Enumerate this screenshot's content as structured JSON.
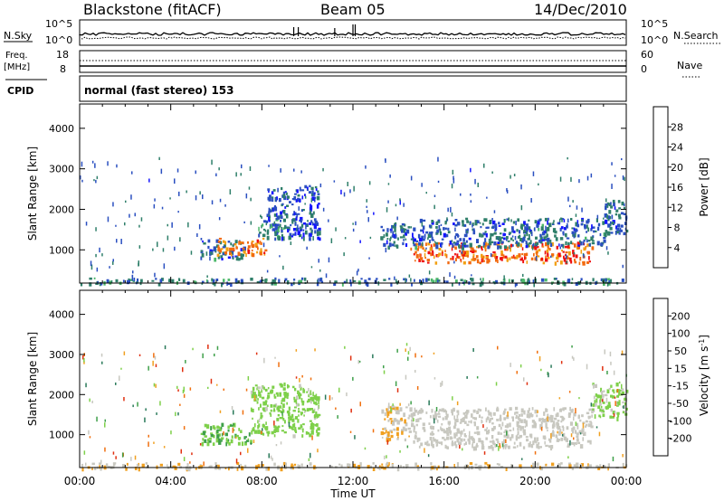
{
  "header": {
    "station": "Blackstone (fitACF)",
    "beam": "Beam 05",
    "date": "14/Dec/2010"
  },
  "noise_panel": {
    "left_label": "N.Sky",
    "left_ticks": [
      "10^5",
      "10^0"
    ],
    "right_ticks": [
      "10^5",
      "10^0"
    ],
    "right_label": "N.Search"
  },
  "freq_panel": {
    "label_line1": "Freq.",
    "label_line2": "[MHz]",
    "left_ticks": [
      "18",
      "8"
    ],
    "right_ticks": [
      "60",
      "0"
    ],
    "right_label": "Nave"
  },
  "cpid_panel": {
    "label": "CPID",
    "text": "normal (fast stereo) 153"
  },
  "x_axis": {
    "ticks": [
      "00:00",
      "04:00",
      "08:00",
      "12:00",
      "16:00",
      "20:00",
      "00:00"
    ],
    "tick_hours": [
      0,
      4,
      8,
      12,
      16,
      20,
      24
    ],
    "label": "Time UT"
  },
  "power_colorbar": {
    "label": "Power [dB]",
    "ticks": [
      "4",
      "8",
      "12",
      "16",
      "20",
      "24",
      "28"
    ],
    "colors": [
      "#1414ff",
      "#2a4fc0",
      "#2f7f6a",
      "#4cb86a",
      "#f2a012",
      "#f26a10",
      "#ee1010"
    ]
  },
  "velocity_colorbar": {
    "label": "Velocity [m s^-1]",
    "ticks": [
      "200",
      "100",
      "50",
      "15",
      "-15",
      "-50",
      "-100",
      "-200"
    ],
    "colors": [
      "#1f3fb0",
      "#2a7a5a",
      "#3fa04a",
      "#7ed04a",
      "#c8c8c0",
      "#f0a020",
      "#f07010",
      "#e03010",
      "#ee1010"
    ]
  },
  "chart_data": [
    {
      "type": "heatmap",
      "title": "Power",
      "xlabel": "Time UT",
      "ylabel": "Slant Range [km]",
      "xlim": [
        0,
        24
      ],
      "ylim": [
        180,
        4600
      ],
      "yticks": [
        1000,
        2000,
        3000,
        4000
      ],
      "colorbar": "Power [dB]",
      "clim": [
        0,
        30
      ],
      "regions": [
        {
          "t": [
            5.3,
            7.2
          ],
          "range": [
            800,
            1300
          ],
          "value": 8
        },
        {
          "t": [
            6.0,
            8.2
          ],
          "range": [
            900,
            1300
          ],
          "value": 22
        },
        {
          "t": [
            7.8,
            9.0
          ],
          "range": [
            1300,
            1900
          ],
          "value": 12
        },
        {
          "t": [
            8.2,
            10.5
          ],
          "range": [
            1300,
            2600
          ],
          "value": 6
        },
        {
          "t": [
            13.2,
            14.5
          ],
          "range": [
            1100,
            1700
          ],
          "value": 8
        },
        {
          "t": [
            14.5,
            22.5
          ],
          "range": [
            700,
            1200
          ],
          "value": 24
        },
        {
          "t": [
            14.5,
            23.0
          ],
          "range": [
            1100,
            1800
          ],
          "value": 8
        },
        {
          "t": [
            23.0,
            24.0
          ],
          "range": [
            1400,
            2300
          ],
          "value": 8
        },
        {
          "t": [
            0,
            24
          ],
          "range": [
            180,
            320
          ],
          "value": 10
        }
      ]
    },
    {
      "type": "heatmap",
      "title": "Velocity",
      "xlabel": "Time UT",
      "ylabel": "Slant Range [km]",
      "xlim": [
        0,
        24
      ],
      "ylim": [
        180,
        4600
      ],
      "yticks": [
        1000,
        2000,
        3000,
        4000
      ],
      "colorbar": "Velocity [m s^-1]",
      "clim": [
        -200,
        200
      ],
      "regions": [
        {
          "t": [
            5.3,
            7.5
          ],
          "range": [
            800,
            1300
          ],
          "value": -60
        },
        {
          "t": [
            7.5,
            10.5
          ],
          "range": [
            1000,
            2300
          ],
          "value": -40
        },
        {
          "t": [
            13.2,
            14.5
          ],
          "range": [
            900,
            1800
          ],
          "value": 20
        },
        {
          "t": [
            14.5,
            22.5
          ],
          "range": [
            700,
            1700
          ],
          "value": 0
        },
        {
          "t": [
            22.5,
            24.0
          ],
          "range": [
            1400,
            2300
          ],
          "value": -30
        },
        {
          "t": [
            0,
            24
          ],
          "range": [
            180,
            320
          ],
          "value": 20
        }
      ]
    }
  ]
}
